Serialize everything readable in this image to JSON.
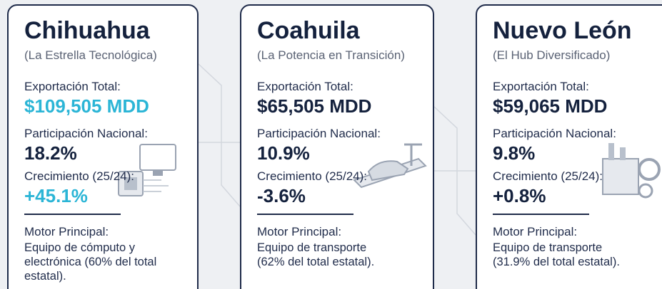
{
  "cards": [
    {
      "title": "Chihuahua",
      "subtitle": "(La Estrella Tecnológica)",
      "export_label": "Exportación Total:",
      "export_value": "$109,505 MDD",
      "share_label": "Participación Nacional:",
      "share_value": "18.2%",
      "growth_label": "Crecimiento (25/24):",
      "growth_value": "+45.1%",
      "motor_label": "Motor Principal:",
      "motor_lines": [
        "Equipo de cómputo y",
        "electrónica (60% del total",
        "estatal)."
      ]
    },
    {
      "title": "Coahuila",
      "subtitle": "(La Potencia en Transición)",
      "export_label": "Exportación Total:",
      "export_value": "$65,505 MDD",
      "share_label": "Participación Nacional:",
      "share_value": "10.9%",
      "growth_label": "Crecimiento (25/24):",
      "growth_value": "-3.6%",
      "motor_label": "Motor Principal:",
      "motor_lines": [
        "Equipo de transporte",
        "(62% del total estatal)."
      ]
    },
    {
      "title": "Nuevo León",
      "subtitle": "(El Hub Diversificado)",
      "export_label": "Exportación Total:",
      "export_value": "$59,065 MDD",
      "share_label": "Participación Nacional:",
      "share_value": "9.8%",
      "growth_label": "Crecimiento (25/24):",
      "growth_value": "+0.8%",
      "motor_label": "Motor Principal:",
      "motor_lines": [
        "Equipo de transporte",
        "(31.9% del total estatal)."
      ]
    }
  ]
}
